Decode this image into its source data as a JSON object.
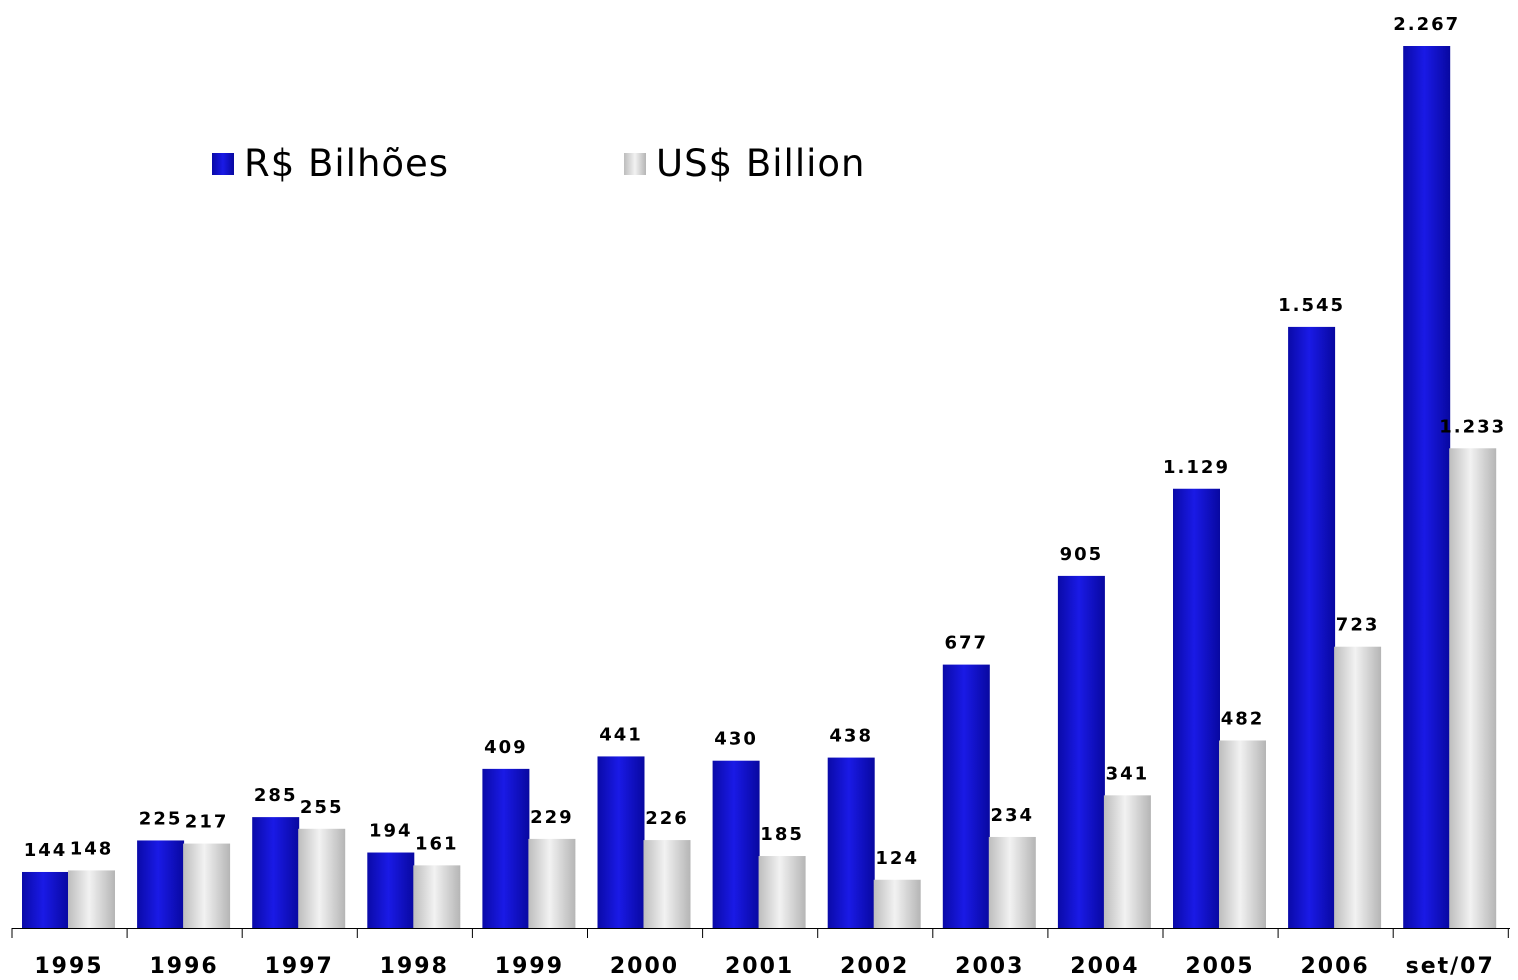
{
  "chart_data": {
    "type": "bar",
    "categories": [
      "1995",
      "1996",
      "1997",
      "1998",
      "1999",
      "2000",
      "2001",
      "2002",
      "2003",
      "2004",
      "2005",
      "2006",
      "set/07"
    ],
    "series": [
      {
        "name": "R$ Bilhões",
        "values": [
          144,
          225,
          285,
          194,
          409,
          441,
          430,
          438,
          677,
          905,
          1129,
          1545,
          2267
        ],
        "labels": [
          "144",
          "225",
          "285",
          "194",
          "409",
          "441",
          "430",
          "438",
          "677",
          "905",
          "1.129",
          "1.545",
          "2.267"
        ],
        "color": "#1010cc"
      },
      {
        "name": "US$ Billion",
        "values": [
          148,
          217,
          255,
          161,
          229,
          226,
          185,
          124,
          234,
          341,
          482,
          723,
          1233
        ],
        "labels": [
          "148",
          "217",
          "255",
          "161",
          "229",
          "226",
          "185",
          "124",
          "234",
          "341",
          "482",
          "723",
          "1.233"
        ],
        "color": "#d4d4d4"
      }
    ],
    "ylim": [
      0,
      2400
    ],
    "grid": false,
    "legend": "top-left"
  }
}
